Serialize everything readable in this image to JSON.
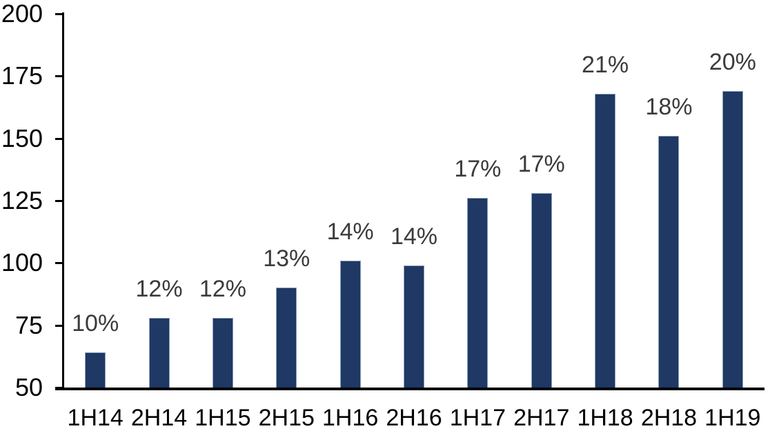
{
  "chart_data": {
    "type": "bar",
    "title": "",
    "xlabel": "",
    "ylabel": "",
    "categories": [
      "1H14",
      "2H14",
      "1H15",
      "2H15",
      "1H16",
      "2H16",
      "1H17",
      "2H17",
      "1H18",
      "2H18",
      "1H19"
    ],
    "values": [
      64,
      78,
      78,
      90,
      101,
      99,
      126,
      128,
      168,
      151,
      169
    ],
    "data_labels": [
      "10%",
      "12%",
      "12%",
      "13%",
      "14%",
      "14%",
      "17%",
      "17%",
      "21%",
      "18%",
      "20%"
    ],
    "yticks": [
      50,
      75,
      100,
      125,
      150,
      175,
      200
    ],
    "ylim": [
      50,
      200
    ],
    "grid": false,
    "legend": false,
    "colors": {
      "bar_fill": "#1f3864",
      "bar_border": "#8ea0bc",
      "data_label": "#3b3b3b",
      "axis": "#000000",
      "tick_label": "#000000",
      "background": "#ffffff"
    }
  }
}
